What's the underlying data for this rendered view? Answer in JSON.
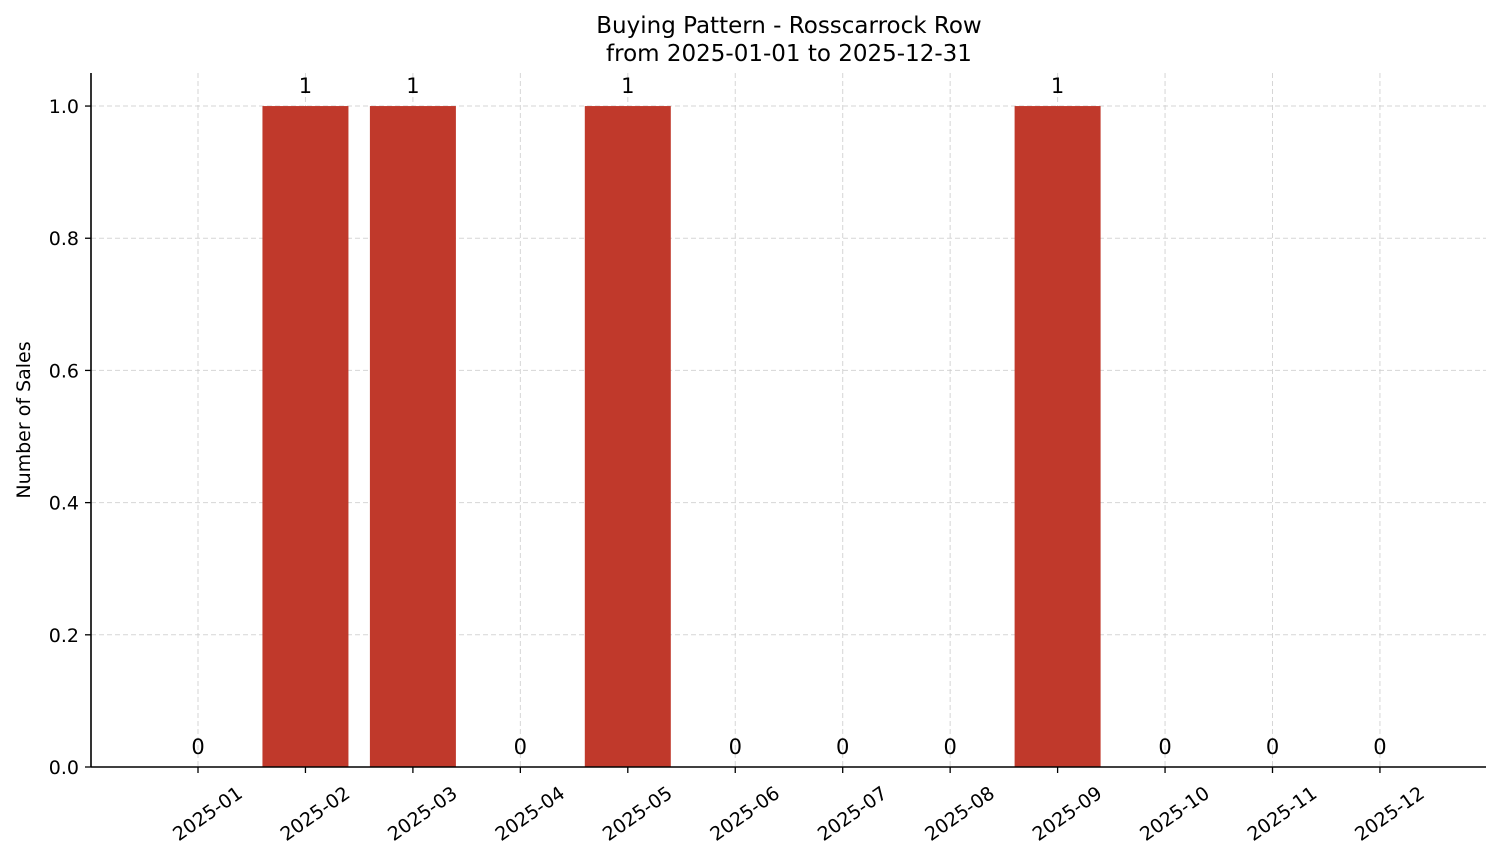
{
  "chart_data": {
    "type": "bar",
    "title": "Buying Pattern - Rosscarrock Row",
    "subtitle": "from 2025-01-01 to 2025-12-31",
    "xlabel": "",
    "ylabel": "Number of Sales",
    "categories": [
      "2025-01",
      "2025-02",
      "2025-03",
      "2025-04",
      "2025-05",
      "2025-06",
      "2025-07",
      "2025-08",
      "2025-09",
      "2025-10",
      "2025-11",
      "2025-12"
    ],
    "values": [
      0,
      1,
      1,
      0,
      1,
      0,
      0,
      0,
      1,
      0,
      0,
      0
    ],
    "data_labels": [
      "0",
      "1",
      "1",
      "0",
      "1",
      "0",
      "0",
      "0",
      "1",
      "0",
      "0",
      "0"
    ],
    "ylim": [
      0,
      1.05
    ],
    "yticks": [
      "0.0",
      "0.2",
      "0.4",
      "0.6",
      "0.8",
      "1.0"
    ],
    "grid": true,
    "bar_color": "#c0392b"
  }
}
